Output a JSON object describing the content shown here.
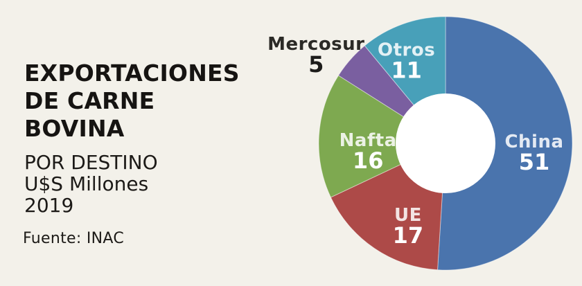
{
  "page": {
    "background_color": "#f3f1ea"
  },
  "header": {
    "title_lines": [
      "EXPORTACIONES",
      "DE CARNE",
      "BOVINA"
    ],
    "subtitle_lines": [
      "POR DESTINO",
      "U$S Millones",
      "2019"
    ],
    "source": "Fuente: INAC"
  },
  "chart_data": {
    "type": "pie",
    "subtype": "donut",
    "title": "EXPORTACIONES DE CARNE BOVINA",
    "subtitle": "POR DESTINO, U$S Millones, 2019",
    "source": "Fuente: INAC",
    "categories": [
      "China",
      "UE",
      "Nafta",
      "Mercosur",
      "Otros"
    ],
    "values": [
      51,
      17,
      16,
      5,
      11
    ],
    "colors": [
      "#4a74ad",
      "#ad4a48",
      "#7ea950",
      "#7a5fa0",
      "#48a0b9"
    ],
    "start_angle_deg": 0,
    "direction": "clockwise",
    "legend": "none",
    "label_placement": [
      "inside",
      "inside",
      "inside",
      "outside",
      "inside"
    ],
    "inside_name_color": "rgba(255,255,255,0.85)",
    "inside_value_color": "#ffffff",
    "outside_name_color": "#2b2a26",
    "outside_value_color": "#1d1c1a",
    "hole_color": "#ffffff",
    "slice_divider_color": "rgba(255,255,255,0.45)"
  }
}
